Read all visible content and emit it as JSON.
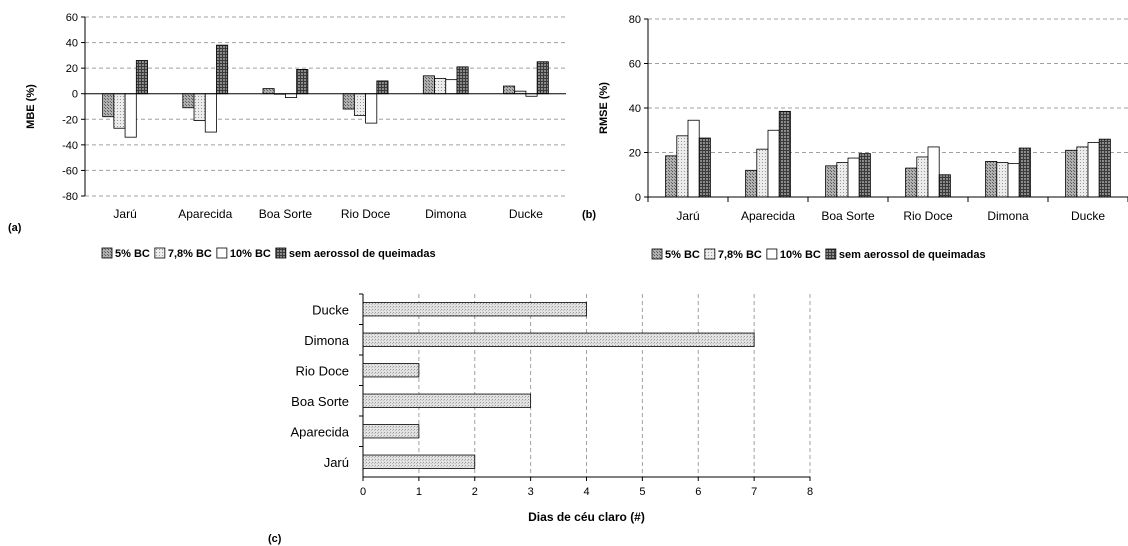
{
  "panels": {
    "a": "(a)",
    "b": "(b)",
    "c": "(c)"
  },
  "colors": {
    "bc5": "#9a9a9a",
    "bc78": "#dcdcdc",
    "bc10": "#ffffff",
    "sem": "#6a6a6a",
    "days": "#d6d6d6",
    "grid": "#a0a0a0"
  },
  "chart_data": [
    {
      "type": "bar",
      "panel": "(a)",
      "ylabel": "MBE (%)",
      "ylim": [
        -80,
        60
      ],
      "yticks": [
        60,
        40,
        20,
        0,
        -20,
        -40,
        -60,
        -80
      ],
      "categories": [
        "Jarú",
        "Aparecida",
        "Boa Sorte",
        "Rio Doce",
        "Dimona",
        "Ducke"
      ],
      "series": [
        {
          "name": "5% BC",
          "values": [
            -18,
            -11,
            4,
            -12,
            14,
            6
          ]
        },
        {
          "name": "7,8% BC",
          "values": [
            -27,
            -21,
            0,
            -17,
            12,
            2
          ]
        },
        {
          "name": "10% BC",
          "values": [
            -34,
            -30,
            -3,
            -23,
            11,
            -2
          ]
        },
        {
          "name": "sem aerossol de queimadas",
          "values": [
            26,
            38,
            19,
            10,
            21,
            25
          ]
        }
      ],
      "grid": true
    },
    {
      "type": "bar",
      "panel": "(b)",
      "ylabel": "RMSE (%)",
      "ylim": [
        0,
        80
      ],
      "yticks": [
        80,
        60,
        40,
        20,
        0
      ],
      "categories": [
        "Jarú",
        "Aparecida",
        "Boa Sorte",
        "Rio Doce",
        "Dimona",
        "Ducke"
      ],
      "series": [
        {
          "name": "5% BC",
          "values": [
            18.5,
            12,
            14,
            13,
            16,
            21
          ]
        },
        {
          "name": "7,8% BC",
          "values": [
            27.5,
            21.5,
            15.5,
            18,
            15.5,
            22.5
          ]
        },
        {
          "name": "10% BC",
          "values": [
            34.5,
            30,
            17.5,
            22.5,
            15,
            24.5
          ]
        },
        {
          "name": "sem aerossol de queimadas",
          "values": [
            26.5,
            38.5,
            19.5,
            10,
            22,
            26
          ]
        }
      ],
      "grid": true
    },
    {
      "type": "bar",
      "orientation": "horizontal",
      "panel": "(c)",
      "xlabel": "Dias de céu claro (#)",
      "xlim": [
        0,
        8
      ],
      "xticks": [
        0,
        1,
        2,
        3,
        4,
        5,
        6,
        7,
        8
      ],
      "categories": [
        "Ducke",
        "Dimona",
        "Rio Doce",
        "Boa Sorte",
        "Aparecida",
        "Jarú"
      ],
      "values": [
        4,
        7,
        1,
        3,
        1,
        2
      ],
      "grid": true
    }
  ]
}
